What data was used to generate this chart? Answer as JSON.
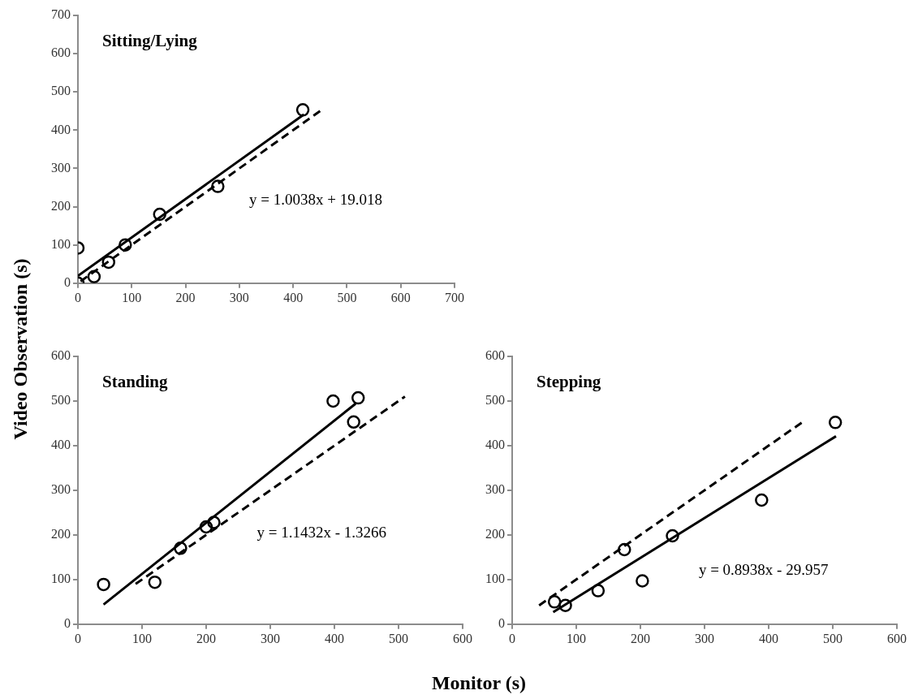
{
  "chart_data": [
    {
      "type": "scatter",
      "title": "Sitting/Lying",
      "ylabel": "Video Observation (s)",
      "xlim": [
        0,
        700
      ],
      "xticks": [
        0,
        100,
        200,
        300,
        400,
        500,
        600,
        700
      ],
      "ylim": [
        0,
        700
      ],
      "yticks": [
        0,
        100,
        200,
        300,
        400,
        500,
        600,
        700
      ],
      "grid": false,
      "annotations": [
        "y = 1.0038x + 19.018"
      ],
      "series": [
        {
          "marker": "circle",
          "color": "#000000",
          "x": [
            0,
            0,
            30,
            57,
            88,
            152,
            260,
            418
          ],
          "values": [
            0,
            92,
            17,
            55,
            100,
            180,
            253,
            453
          ]
        },
        {
          "type": "line",
          "color": "#000000",
          "line_style": "solid",
          "x": [
            0,
            420
          ],
          "values": [
            19,
            441
          ]
        },
        {
          "type": "line",
          "color": "#000000",
          "line_style": "dashed",
          "x": [
            5,
            455
          ],
          "values": [
            5,
            455
          ]
        }
      ]
    },
    {
      "type": "scatter",
      "title": "Standing",
      "xlabel": "Monitor (s)",
      "xlim": [
        0,
        600
      ],
      "xticks": [
        0,
        100,
        200,
        300,
        400,
        500,
        600
      ],
      "ylim": [
        0,
        600
      ],
      "yticks": [
        0,
        100,
        200,
        300,
        400,
        500,
        600
      ],
      "grid": false,
      "annotations": [
        "y = 1.1432x - 1.3266"
      ],
      "series": [
        {
          "marker": "circle",
          "color": "#000000",
          "x": [
            40,
            120,
            160,
            200,
            212,
            398,
            430,
            437
          ],
          "values": [
            89,
            94,
            170,
            218,
            228,
            500,
            453,
            507
          ]
        },
        {
          "type": "line",
          "color": "#000000",
          "line_style": "solid",
          "x": [
            40,
            433
          ],
          "values": [
            44,
            494
          ]
        },
        {
          "type": "line",
          "color": "#000000",
          "line_style": "dashed",
          "x": [
            90,
            510
          ],
          "values": [
            90,
            510
          ]
        }
      ]
    },
    {
      "type": "scatter",
      "title": "Stepping",
      "xlim": [
        0,
        600
      ],
      "xticks": [
        0,
        100,
        200,
        300,
        400,
        500,
        600
      ],
      "ylim": [
        0,
        600
      ],
      "yticks": [
        0,
        100,
        200,
        300,
        400,
        500,
        600
      ],
      "grid": false,
      "annotations": [
        "y = 0.8938x - 29.957"
      ],
      "series": [
        {
          "marker": "circle",
          "color": "#000000",
          "x": [
            66,
            83,
            134,
            175,
            203,
            250,
            389,
            504
          ],
          "values": [
            50,
            42,
            75,
            167,
            97,
            198,
            278,
            452
          ]
        },
        {
          "type": "line",
          "color": "#000000",
          "line_style": "solid",
          "x": [
            64,
            505
          ],
          "values": [
            27,
            421
          ]
        },
        {
          "type": "line",
          "color": "#000000",
          "line_style": "dashed",
          "x": [
            42,
            455
          ],
          "values": [
            42,
            455
          ]
        }
      ]
    }
  ]
}
